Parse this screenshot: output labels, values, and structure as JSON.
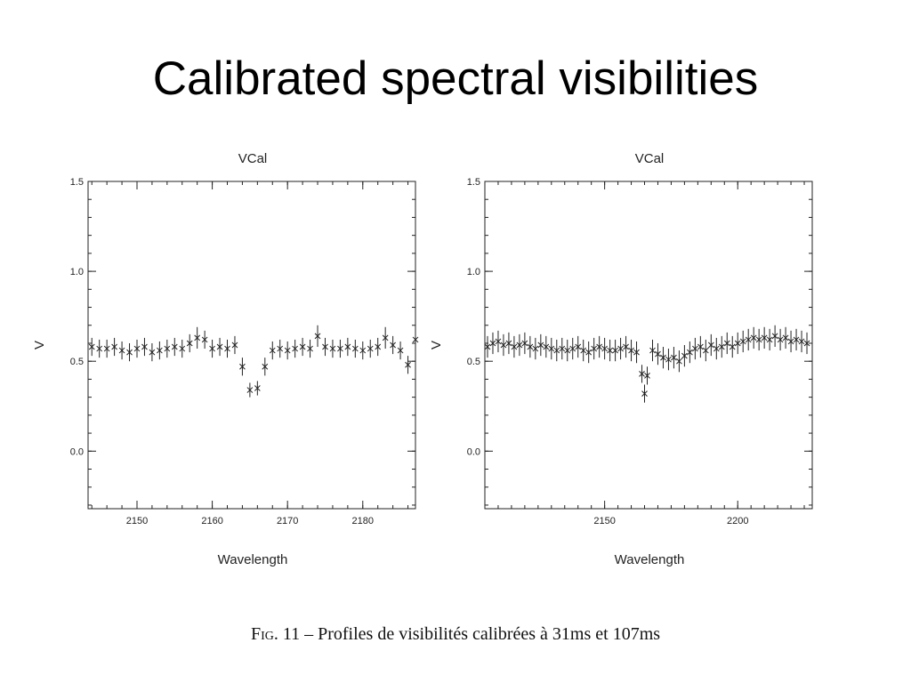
{
  "slide": {
    "title": "Calibrated spectral visibilities",
    "caption_fig": "Fig. 11",
    "caption_text": " – Profiles de visibilités calibrées à 31ms et 107ms"
  },
  "chart_data": [
    {
      "type": "scatter",
      "title": "VCal",
      "xlabel": "Wavelength",
      "ylabel": "V",
      "xlim": [
        2143.5,
        2187
      ],
      "ylim": [
        -0.32,
        1.5
      ],
      "xticks": [
        2150,
        2160,
        2170,
        2180
      ],
      "yticks": [
        0.0,
        0.5,
        1.0,
        1.5
      ],
      "ytick_labels": [
        "0.0",
        "0.5",
        "1.0",
        "1.5"
      ],
      "marker": "x",
      "error_bars": true,
      "color": "#222222",
      "series": [
        {
          "x": [
            2144,
            2145,
            2146,
            2147,
            2148,
            2149,
            2150,
            2151,
            2152,
            2153,
            2154,
            2155,
            2156,
            2157,
            2158,
            2159,
            2160,
            2161,
            2162,
            2163,
            2164,
            2165,
            2166,
            2167,
            2168,
            2169,
            2170,
            2171,
            2172,
            2173,
            2174,
            2175,
            2176,
            2177,
            2178,
            2179,
            2180,
            2181,
            2182,
            2183,
            2184,
            2185,
            2186,
            2187
          ],
          "y": [
            0.58,
            0.57,
            0.57,
            0.58,
            0.56,
            0.55,
            0.57,
            0.58,
            0.55,
            0.56,
            0.57,
            0.58,
            0.57,
            0.6,
            0.63,
            0.62,
            0.57,
            0.58,
            0.57,
            0.59,
            0.47,
            0.34,
            0.35,
            0.47,
            0.56,
            0.57,
            0.56,
            0.57,
            0.58,
            0.57,
            0.64,
            0.58,
            0.57,
            0.57,
            0.58,
            0.57,
            0.56,
            0.57,
            0.58,
            0.63,
            0.59,
            0.56,
            0.48,
            0.62
          ],
          "err": [
            0.05,
            0.05,
            0.05,
            0.05,
            0.05,
            0.05,
            0.05,
            0.05,
            0.05,
            0.05,
            0.05,
            0.05,
            0.05,
            0.05,
            0.06,
            0.05,
            0.05,
            0.05,
            0.05,
            0.05,
            0.05,
            0.04,
            0.04,
            0.05,
            0.05,
            0.05,
            0.05,
            0.05,
            0.05,
            0.05,
            0.06,
            0.05,
            0.05,
            0.05,
            0.05,
            0.05,
            0.05,
            0.05,
            0.05,
            0.06,
            0.05,
            0.05,
            0.05,
            0.05
          ]
        }
      ]
    },
    {
      "type": "scatter",
      "title": "VCal",
      "xlabel": "Wavelength",
      "ylabel": "V",
      "xlim": [
        2105,
        2228
      ],
      "ylim": [
        -0.32,
        1.5
      ],
      "xticks": [
        2150,
        2200
      ],
      "yticks": [
        0.0,
        0.5,
        1.0,
        1.5
      ],
      "ytick_labels": [
        "0.0",
        "0.5",
        "1.0",
        "1.5"
      ],
      "marker": "x",
      "error_bars": true,
      "color": "#222222",
      "series": [
        {
          "x": [
            2106,
            2108,
            2110,
            2112,
            2114,
            2116,
            2118,
            2120,
            2122,
            2124,
            2126,
            2128,
            2130,
            2132,
            2134,
            2136,
            2138,
            2140,
            2142,
            2144,
            2146,
            2148,
            2150,
            2152,
            2154,
            2156,
            2158,
            2160,
            2162,
            2164,
            2165,
            2166,
            2168,
            2170,
            2172,
            2174,
            2176,
            2178,
            2180,
            2182,
            2184,
            2186,
            2188,
            2190,
            2192,
            2194,
            2196,
            2198,
            2200,
            2202,
            2204,
            2206,
            2208,
            2210,
            2212,
            2214,
            2216,
            2218,
            2220,
            2222,
            2224,
            2226
          ],
          "y": [
            0.58,
            0.6,
            0.61,
            0.59,
            0.6,
            0.58,
            0.59,
            0.6,
            0.58,
            0.57,
            0.59,
            0.58,
            0.57,
            0.56,
            0.57,
            0.56,
            0.57,
            0.58,
            0.56,
            0.55,
            0.57,
            0.58,
            0.57,
            0.56,
            0.56,
            0.57,
            0.58,
            0.56,
            0.55,
            0.43,
            0.32,
            0.42,
            0.56,
            0.54,
            0.52,
            0.51,
            0.52,
            0.5,
            0.53,
            0.55,
            0.57,
            0.58,
            0.56,
            0.59,
            0.57,
            0.58,
            0.6,
            0.58,
            0.6,
            0.61,
            0.62,
            0.63,
            0.62,
            0.63,
            0.62,
            0.64,
            0.62,
            0.63,
            0.61,
            0.62,
            0.61,
            0.6
          ],
          "err": [
            0.06,
            0.06,
            0.06,
            0.06,
            0.06,
            0.06,
            0.06,
            0.06,
            0.06,
            0.06,
            0.06,
            0.06,
            0.06,
            0.06,
            0.06,
            0.06,
            0.06,
            0.06,
            0.06,
            0.06,
            0.06,
            0.06,
            0.06,
            0.06,
            0.06,
            0.06,
            0.06,
            0.06,
            0.06,
            0.05,
            0.05,
            0.05,
            0.06,
            0.06,
            0.06,
            0.06,
            0.06,
            0.06,
            0.06,
            0.06,
            0.06,
            0.06,
            0.06,
            0.06,
            0.06,
            0.06,
            0.06,
            0.06,
            0.06,
            0.06,
            0.06,
            0.06,
            0.06,
            0.06,
            0.06,
            0.06,
            0.06,
            0.06,
            0.06,
            0.06,
            0.06,
            0.06
          ]
        }
      ]
    }
  ]
}
